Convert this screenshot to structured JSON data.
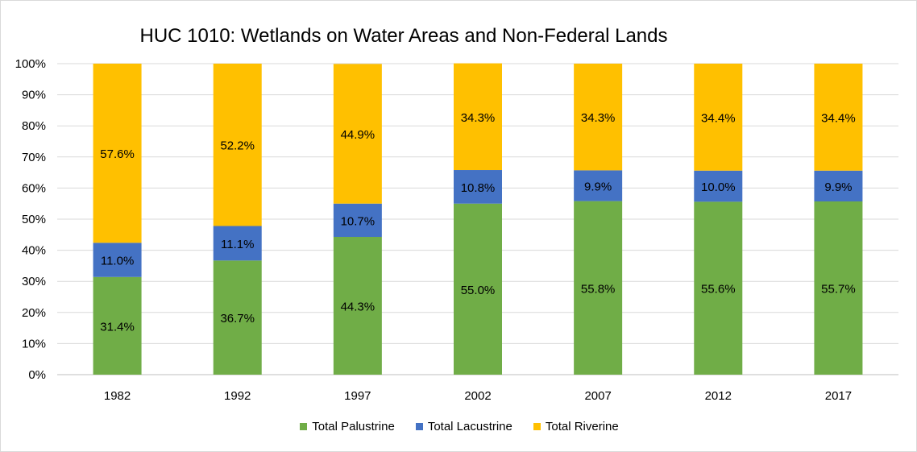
{
  "chart_data": {
    "type": "bar",
    "stacked": true,
    "title": "HUC 1010: Wetlands on Water Areas and Non-Federal Lands",
    "categories": [
      "1982",
      "1992",
      "1997",
      "2002",
      "2007",
      "2012",
      "2017"
    ],
    "ylim": [
      0,
      100
    ],
    "yticks": [
      "0%",
      "10%",
      "20%",
      "30%",
      "40%",
      "50%",
      "60%",
      "70%",
      "80%",
      "90%",
      "100%"
    ],
    "grid": true,
    "legend_position": "bottom",
    "series": [
      {
        "name": "Total Palustrine",
        "color": "#70ad47",
        "values": [
          31.4,
          36.7,
          44.3,
          55.0,
          55.8,
          55.6,
          55.7
        ],
        "labels": [
          "31.4%",
          "36.7%",
          "44.3%",
          "55.0%",
          "55.8%",
          "55.6%",
          "55.7%"
        ]
      },
      {
        "name": "Total Lacustrine",
        "color": "#4472c4",
        "values": [
          11.0,
          11.1,
          10.7,
          10.8,
          9.9,
          10.0,
          9.9
        ],
        "labels": [
          "11.0%",
          "11.1%",
          "10.7%",
          "10.8%",
          "9.9%",
          "10.0%",
          "9.9%"
        ]
      },
      {
        "name": "Total Riverine",
        "color": "#ffc000",
        "values": [
          57.6,
          52.2,
          44.9,
          34.3,
          34.3,
          34.4,
          34.4
        ],
        "labels": [
          "57.6%",
          "52.2%",
          "44.9%",
          "34.3%",
          "34.3%",
          "34.4%",
          "34.4%"
        ]
      }
    ]
  }
}
